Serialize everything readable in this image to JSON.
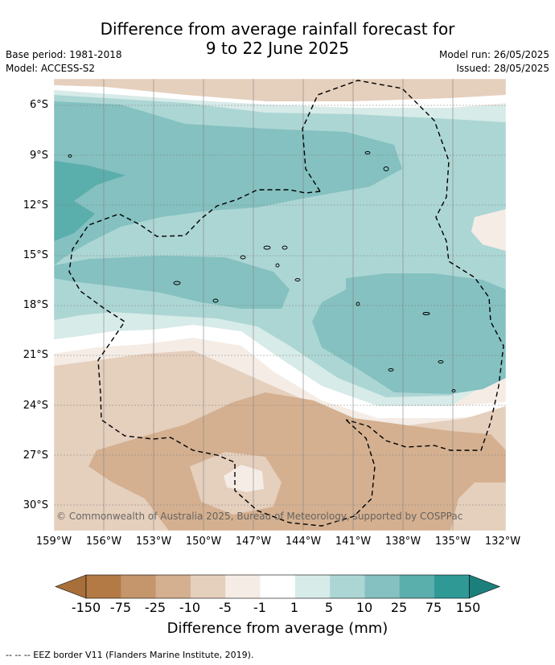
{
  "title_line1": "Difference from average rainfall forecast for",
  "title_line2": "9 to 22 June 2025",
  "base_period": "Base period: 1981-2018",
  "model": "Model: ACCESS-S2",
  "model_run": "Model run: 26/05/2025",
  "issued": "Issued: 28/05/2025",
  "copyright": "© Commonwealth of Australia 2025, Bureau of Meteorology, supported by COSPPac",
  "lat_labels": [
    "6°S",
    "9°S",
    "12°S",
    "15°S",
    "18°S",
    "21°S",
    "24°S",
    "27°S",
    "30°S"
  ],
  "lon_labels": [
    "159°W",
    "156°W",
    "153°W",
    "150°W",
    "147°W",
    "144°W",
    "141°W",
    "138°W",
    "135°W",
    "132°W"
  ],
  "colorbar": {
    "title": "Difference from average (mm)",
    "tick_labels": [
      "-150",
      "-75",
      "-25",
      "-10",
      "-5",
      "-1",
      "1",
      "5",
      "10",
      "25",
      "75",
      "150"
    ],
    "colors": [
      "#a86f3a",
      "#b37a45",
      "#c5956b",
      "#d4b090",
      "#e5cfbd",
      "#f5ece6",
      "#ffffff",
      "#d7ebe9",
      "#acd6d4",
      "#84c1c0",
      "#5aaeac",
      "#2f9996",
      "#1c7f7c"
    ]
  },
  "legend_text": "--  --  -- EEZ border V11 (Flanders Marine Institute, 2019)."
}
